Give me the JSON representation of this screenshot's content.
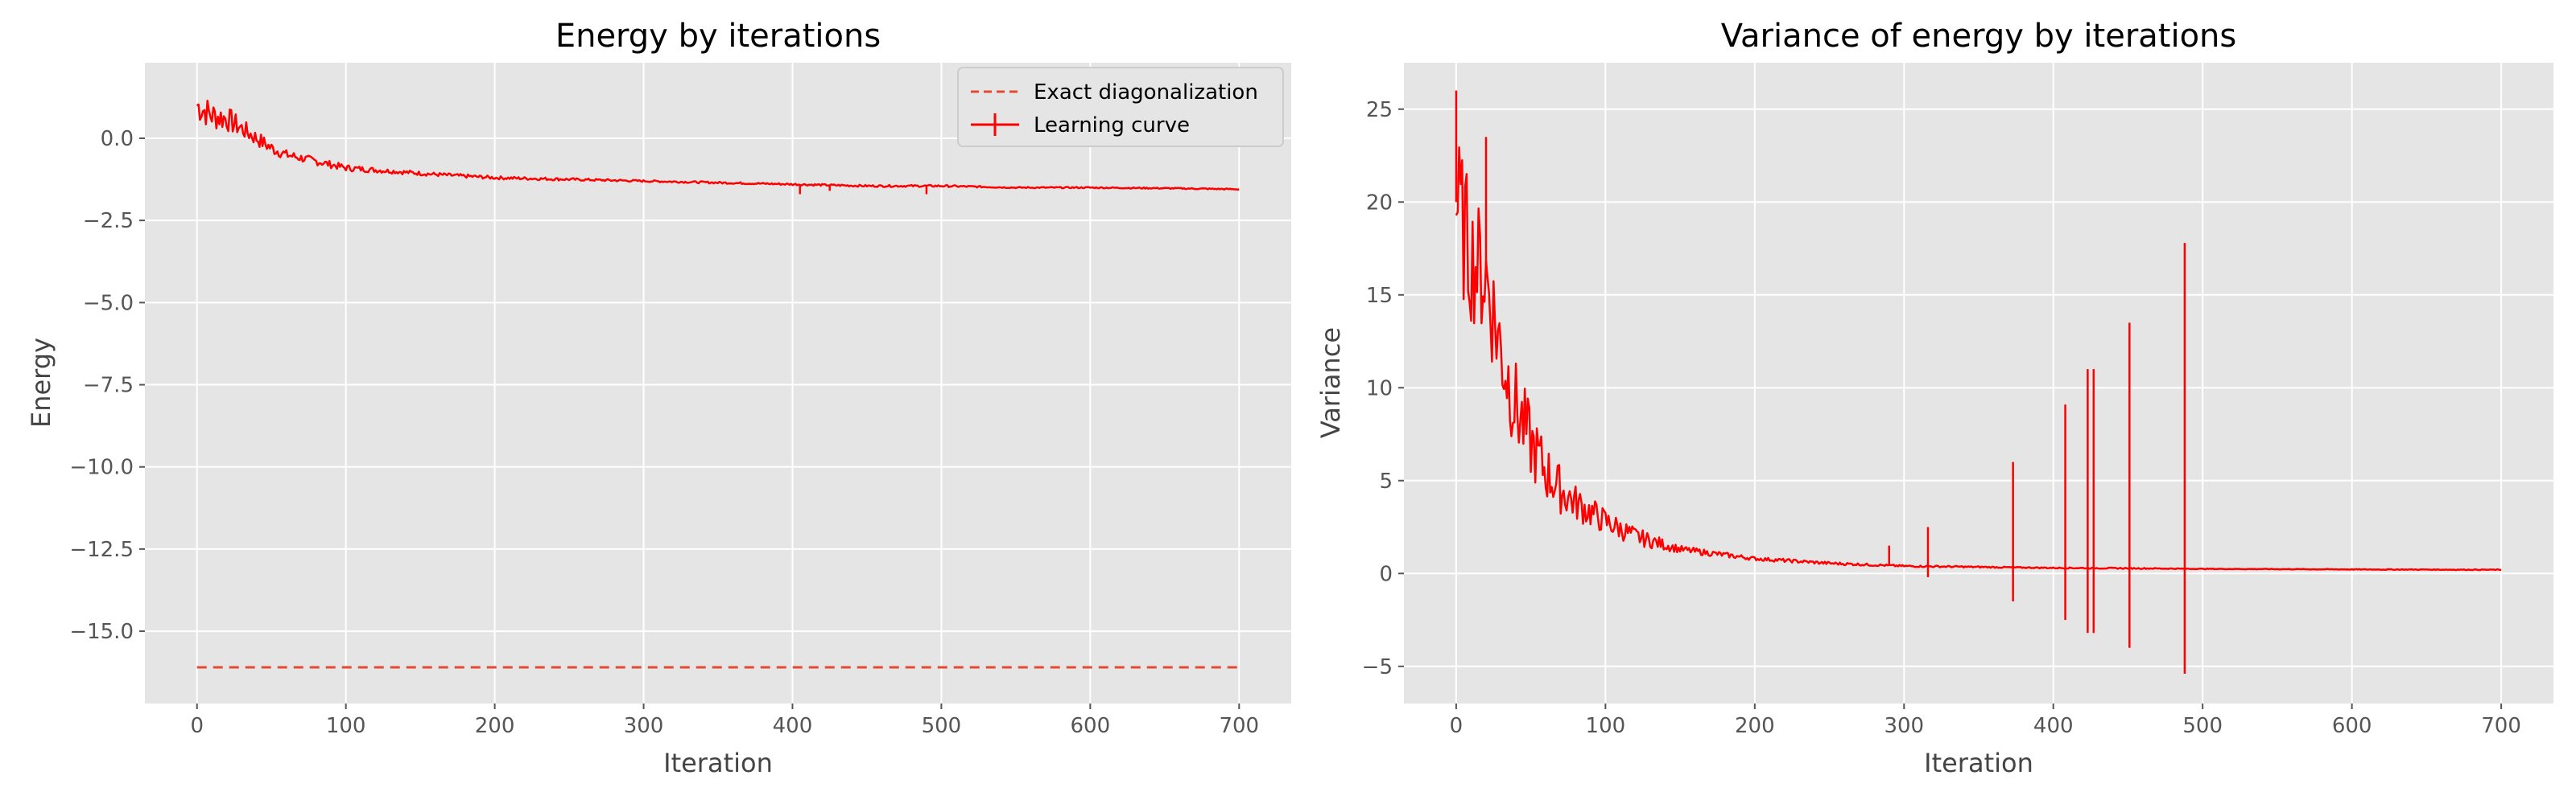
{
  "chart_data": [
    {
      "type": "line",
      "title": "Energy by iterations",
      "xlabel": "Iteration",
      "ylabel": "Energy",
      "xlim": [
        -35,
        735
      ],
      "ylim": [
        -17.2,
        2.3
      ],
      "xticks": [
        0,
        100,
        200,
        300,
        400,
        500,
        600,
        700
      ],
      "yticks": [
        0.0,
        -2.5,
        -5.0,
        -7.5,
        -10.0,
        -12.5,
        -15.0
      ],
      "ytick_labels": [
        "0.0",
        "−2.5",
        "−5.0",
        "−7.5",
        "−10.0",
        "−12.5",
        "−15.0"
      ],
      "grid": true,
      "legend_position": "top-right",
      "legend": [
        "Exact diagonalization",
        "Learning curve"
      ],
      "series": [
        {
          "name": "Exact diagonalization",
          "style": "dashed",
          "color": "#e24a33",
          "x": [
            0,
            700
          ],
          "y": [
            -16.1,
            -16.1
          ]
        },
        {
          "name": "Learning curve",
          "style": "solid-errorbar",
          "color": "#ff0000",
          "x": [
            0,
            10,
            20,
            30,
            40,
            50,
            60,
            80,
            100,
            130,
            160,
            200,
            250,
            300,
            350,
            400,
            450,
            500,
            550,
            600,
            650,
            700
          ],
          "y": [
            1.0,
            0.7,
            0.6,
            0.3,
            0.0,
            -0.3,
            -0.5,
            -0.7,
            -0.9,
            -1.0,
            -1.1,
            -1.2,
            -1.25,
            -1.3,
            -1.35,
            -1.4,
            -1.45,
            -1.45,
            -1.5,
            -1.5,
            -1.52,
            -1.55
          ],
          "spread": [
            0.5,
            0.45,
            0.4,
            0.3,
            0.25,
            0.2,
            0.15,
            0.12,
            0.1,
            0.07,
            0.06,
            0.05,
            0.04,
            0.03,
            0.03,
            0.03,
            0.03,
            0.03,
            0.02,
            0.02,
            0.02,
            0.02
          ],
          "spikes": [
            [
              405,
              -1.7
            ],
            [
              425,
              -1.6
            ],
            [
              490,
              -1.7
            ]
          ]
        }
      ]
    },
    {
      "type": "line",
      "title": "Variance of energy by iterations",
      "xlabel": "Iteration",
      "ylabel": "Variance",
      "xlim": [
        -35,
        735
      ],
      "ylim": [
        -7.0,
        27.5
      ],
      "xticks": [
        0,
        100,
        200,
        300,
        400,
        500,
        600,
        700
      ],
      "yticks": [
        -5,
        0,
        5,
        10,
        15,
        20,
        25
      ],
      "ytick_labels": [
        "−5",
        "0",
        "5",
        "10",
        "15",
        "20",
        "25"
      ],
      "grid": true,
      "series": [
        {
          "color": "#ff0000",
          "x": [
            0,
            5,
            10,
            20,
            30,
            40,
            50,
            60,
            70,
            80,
            100,
            120,
            150,
            200,
            250,
            300,
            350,
            400,
            450,
            500,
            600,
            700
          ],
          "y": [
            20.0,
            18.5,
            17.0,
            16.0,
            12.0,
            9.0,
            7.0,
            5.5,
            4.5,
            3.8,
            2.8,
            2.0,
            1.3,
            0.8,
            0.55,
            0.4,
            0.35,
            0.3,
            0.28,
            0.25,
            0.22,
            0.2
          ],
          "spread": [
            4.0,
            4.0,
            3.5,
            3.5,
            3.0,
            2.5,
            2.0,
            1.6,
            1.3,
            1.0,
            0.7,
            0.5,
            0.2,
            0.1,
            0.08,
            0.05,
            0.04,
            0.03,
            0.03,
            0.02,
            0.02,
            0.02
          ],
          "spikes": [
            [
              0,
              26.0
            ],
            [
              20,
              23.5
            ],
            [
              290,
              1.5
            ],
            [
              316,
              2.5
            ],
            [
              316,
              -0.2
            ],
            [
              373,
              6.0
            ],
            [
              373,
              -1.5
            ],
            [
              408,
              9.1
            ],
            [
              408,
              -2.5
            ],
            [
              423,
              11.0
            ],
            [
              423,
              -3.2
            ],
            [
              427,
              11.0
            ],
            [
              427,
              -3.2
            ],
            [
              451,
              13.5
            ],
            [
              451,
              -4.0
            ],
            [
              488,
              17.8
            ],
            [
              488,
              -5.4
            ]
          ]
        }
      ]
    }
  ]
}
